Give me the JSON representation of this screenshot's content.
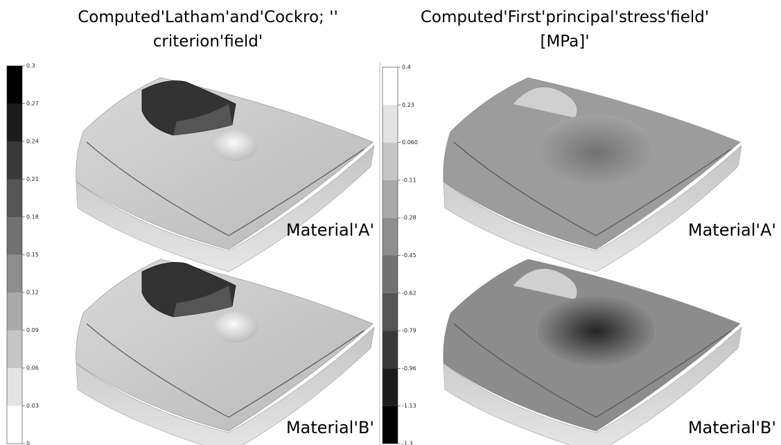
{
  "left_panel": {
    "title_lines": [
      "Computed'Latham'and'Cockro; ''",
      "criterion'field'"
    ],
    "colorbar_ticks": [
      "0.3",
      "0.27",
      "0.24",
      "0.21",
      "0.18",
      "0.15",
      "0.12",
      "0.09",
      "0.06",
      "0.03",
      "0"
    ],
    "labels": [
      "Material'A'",
      "Material'B'"
    ]
  },
  "right_panel": {
    "title_lines": [
      "Computed'First'principal'stress'field'",
      "[MPa]'"
    ],
    "colorbar_ticks": [
      "0.4",
      "0.23",
      "0.060",
      "-0.11",
      "-0.28",
      "-0.45",
      "-0.62",
      "-0.79",
      "-0.96",
      "-1.13",
      "-1.3"
    ],
    "labels": [
      "Material'A'",
      "Material'B'"
    ]
  }
}
